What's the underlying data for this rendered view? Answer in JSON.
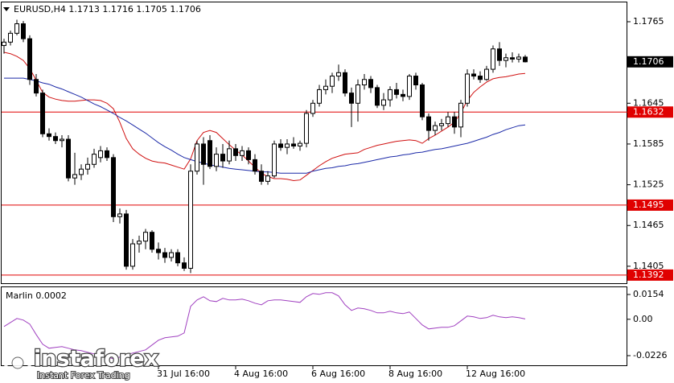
{
  "chart_data": {
    "type": "candlestick",
    "title": "EURUSD,H4  1.1713 1.1716 1.1705 1.1706",
    "categories": [
      null,
      null,
      null,
      null,
      null,
      null,
      null,
      null,
      null,
      null,
      null,
      null,
      null,
      null,
      null,
      null,
      null,
      null,
      null,
      null,
      null,
      null,
      null,
      null,
      "31 Jul 16:00",
      null,
      null,
      null,
      null,
      null,
      null,
      null,
      null,
      null,
      null,
      null,
      "4 Aug 16:00",
      null,
      null,
      null,
      null,
      null,
      null,
      null,
      null,
      null,
      null,
      null,
      "6 Aug 16:00",
      null,
      null,
      null,
      null,
      null,
      null,
      null,
      null,
      null,
      null,
      null,
      "8 Aug 16:00",
      null,
      null,
      null,
      null,
      null,
      null,
      null,
      null,
      null,
      null,
      null,
      "12 Aug 16:00",
      null,
      null,
      null,
      null,
      null,
      null,
      null,
      null,
      null
    ],
    "open": [
      1.173,
      1.1735,
      1.1748,
      1.1762,
      1.174,
      1.168,
      1.166,
      1.16,
      1.1596,
      1.159,
      1.1592,
      1.1535,
      1.154,
      1.1548,
      1.1555,
      1.1565,
      1.1575,
      1.1565,
      1.1478,
      1.1482,
      1.1405,
      1.1438,
      1.1442,
      1.1455,
      1.143,
      1.1425,
      1.1418,
      1.1425,
      1.141,
      1.1402,
      1.1545,
      1.1585,
      1.159,
      1.1552,
      1.157,
      1.156,
      1.1578,
      1.1568,
      1.1575,
      1.1562,
      1.1545,
      1.153,
      1.1538,
      1.1585,
      1.158,
      1.1585,
      1.1582,
      1.1586,
      1.163,
      1.1645,
      1.1665,
      1.167,
      1.1685,
      1.169,
      1.166,
      1.1645,
      1.1672,
      1.168,
      1.1668,
      1.1642,
      1.165,
      1.1665,
      1.1658,
      1.1655,
      1.1685,
      1.1672,
      1.1625,
      1.1605,
      1.1612,
      1.1615,
      1.1625,
      1.161,
      1.1645,
      1.1688,
      1.1685,
      1.168,
      1.1695,
      1.1725,
      1.1708,
      1.1712,
      1.171,
      1.1713
    ],
    "high": [
      1.174,
      1.1752,
      1.1768,
      1.1766,
      1.1745,
      1.1688,
      1.1665,
      1.1608,
      1.1602,
      1.1598,
      1.1598,
      1.1572,
      1.1555,
      1.1565,
      1.1578,
      1.1582,
      1.158,
      1.157,
      1.149,
      1.1488,
      1.1445,
      1.145,
      1.146,
      1.1458,
      1.144,
      1.1432,
      1.143,
      1.143,
      1.1418,
      1.1555,
      1.159,
      1.1595,
      1.1598,
      1.158,
      1.1585,
      1.159,
      1.1585,
      1.1582,
      1.158,
      1.157,
      1.1555,
      1.1545,
      1.159,
      1.1592,
      1.1592,
      1.1595,
      1.159,
      1.1635,
      1.165,
      1.1672,
      1.168,
      1.169,
      1.1702,
      1.1695,
      1.1668,
      1.168,
      1.1688,
      1.1685,
      1.1672,
      1.166,
      1.167,
      1.1675,
      1.1665,
      1.1688,
      1.169,
      1.1675,
      1.163,
      1.1618,
      1.1622,
      1.1632,
      1.1632,
      1.165,
      1.1695,
      1.1695,
      1.1692,
      1.17,
      1.173,
      1.1735,
      1.1718,
      1.172,
      1.1718,
      1.1716
    ],
    "low": [
      1.1718,
      1.173,
      1.1745,
      1.1735,
      1.1672,
      1.1655,
      1.1595,
      1.159,
      1.1585,
      1.158,
      1.153,
      1.1525,
      1.1532,
      1.154,
      1.155,
      1.1558,
      1.156,
      1.147,
      1.1468,
      1.14,
      1.14,
      1.1425,
      1.143,
      1.1425,
      1.1415,
      1.141,
      1.1412,
      1.1405,
      1.1398,
      1.1395,
      1.154,
      1.1525,
      1.1548,
      1.1545,
      1.155,
      1.1555,
      1.156,
      1.156,
      1.1555,
      1.154,
      1.1525,
      1.1525,
      1.1535,
      1.1575,
      1.157,
      1.1578,
      1.1575,
      1.158,
      1.1625,
      1.164,
      1.1658,
      1.166,
      1.1678,
      1.1655,
      1.161,
      1.1618,
      1.1665,
      1.166,
      1.1638,
      1.1635,
      1.164,
      1.1652,
      1.1648,
      1.165,
      1.1665,
      1.162,
      1.159,
      1.1598,
      1.1605,
      1.161,
      1.16,
      1.1595,
      1.164,
      1.168,
      1.1675,
      1.1678,
      1.169,
      1.17,
      1.1698,
      1.1705,
      1.1705,
      1.1705
    ],
    "close": [
      1.1735,
      1.1748,
      1.1762,
      1.174,
      1.168,
      1.166,
      1.16,
      1.1596,
      1.159,
      1.1592,
      1.1535,
      1.154,
      1.1548,
      1.1555,
      1.157,
      1.1575,
      1.1565,
      1.1478,
      1.1482,
      1.1405,
      1.1438,
      1.1442,
      1.1455,
      1.143,
      1.1425,
      1.1418,
      1.1425,
      1.141,
      1.1402,
      1.1545,
      1.1585,
      1.1555,
      1.1552,
      1.157,
      1.156,
      1.1578,
      1.1568,
      1.1575,
      1.1562,
      1.1545,
      1.153,
      1.1538,
      1.1585,
      1.158,
      1.1585,
      1.1582,
      1.1586,
      1.163,
      1.1645,
      1.1665,
      1.167,
      1.1685,
      1.169,
      1.166,
      1.1645,
      1.1672,
      1.168,
      1.1668,
      1.1642,
      1.165,
      1.1665,
      1.1658,
      1.1655,
      1.1685,
      1.1672,
      1.1625,
      1.1605,
      1.1612,
      1.1615,
      1.1625,
      1.161,
      1.1645,
      1.1688,
      1.1685,
      1.168,
      1.1695,
      1.1725,
      1.1708,
      1.1712,
      1.171,
      1.1713,
      1.1706
    ],
    "lines": [
      {
        "color": "#d01010",
        "values": [
          1.172,
          1.1718,
          1.1714,
          1.1708,
          1.1696,
          1.1679,
          1.1661,
          1.1654,
          1.1651,
          1.1649,
          1.1648,
          1.1648,
          1.1649,
          1.165,
          1.165,
          1.1649,
          1.1645,
          1.1637,
          1.1617,
          1.1593,
          1.1578,
          1.157,
          1.1564,
          1.156,
          1.1558,
          1.1557,
          1.1554,
          1.1551,
          1.1548,
          1.1563,
          1.159,
          1.1602,
          1.1605,
          1.1602,
          1.1593,
          1.1584,
          1.1576,
          1.1569,
          1.156,
          1.1551,
          1.1542,
          1.1537,
          1.1534,
          1.1534,
          1.1533,
          1.1531,
          1.1532,
          1.1539,
          1.1546,
          1.1553,
          1.1559,
          1.1564,
          1.1567,
          1.157,
          1.1571,
          1.1572,
          1.1577,
          1.158,
          1.1583,
          1.1585,
          1.1587,
          1.1589,
          1.159,
          1.1591,
          1.159,
          1.1586,
          1.1593,
          1.1598,
          1.1604,
          1.161,
          1.1617,
          1.1631,
          1.1649,
          1.1661,
          1.1669,
          1.1676,
          1.1681,
          1.1683,
          1.1684,
          1.1686,
          1.1688,
          1.1689
        ]
      },
      {
        "color": "#1c2aa8",
        "values": [
          1.1682,
          1.1682,
          1.1682,
          1.1682,
          1.168,
          1.1678,
          1.1675,
          1.1673,
          1.1669,
          1.1666,
          1.1662,
          1.1658,
          1.1654,
          1.1649,
          1.1644,
          1.164,
          1.1635,
          1.163,
          1.1624,
          1.1619,
          1.1613,
          1.1607,
          1.1601,
          1.1594,
          1.1587,
          1.1581,
          1.1576,
          1.157,
          1.1565,
          1.1562,
          1.1559,
          1.1557,
          1.1554,
          1.1553,
          1.1551,
          1.1549,
          1.1548,
          1.1547,
          1.1546,
          1.1545,
          1.1544,
          1.1544,
          1.1543,
          1.1542,
          1.1542,
          1.1542,
          1.1542,
          1.1542,
          1.1545,
          1.1547,
          1.1549,
          1.155,
          1.1552,
          1.1553,
          1.1555,
          1.1556,
          1.1558,
          1.156,
          1.1562,
          1.1564,
          1.1566,
          1.1567,
          1.1569,
          1.157,
          1.1572,
          1.1573,
          1.1575,
          1.1577,
          1.1578,
          1.158,
          1.1582,
          1.1584,
          1.1586,
          1.1589,
          1.1592,
          1.1595,
          1.1599,
          1.1602,
          1.1606,
          1.1609,
          1.1612,
          1.1613
        ]
      }
    ],
    "ylim": [
      1.138,
      1.1797
    ],
    "yticks": [
      1.1765,
      1.1645,
      1.1585,
      1.1525,
      1.1465,
      1.1405
    ],
    "levels": [
      1.1632,
      1.1495,
      1.1392
    ],
    "level_color": "#e00000",
    "indicator": {
      "name": "Marlin",
      "color": "#a040c0",
      "values": [
        -0.0045,
        -0.002,
        0.0005,
        -0.0005,
        -0.003,
        -0.0095,
        -0.0155,
        -0.018,
        -0.0175,
        -0.017,
        -0.018,
        -0.019,
        -0.0195,
        -0.0205,
        -0.0215,
        -0.0225,
        -0.0235,
        -0.0245,
        -0.0235,
        -0.022,
        -0.021,
        -0.02,
        -0.019,
        -0.016,
        -0.013,
        -0.0115,
        -0.011,
        -0.0105,
        -0.0085,
        0.008,
        0.012,
        0.014,
        0.0115,
        0.011,
        0.013,
        0.012,
        0.012,
        0.0125,
        0.0115,
        0.01,
        0.009,
        0.0115,
        0.012,
        0.012,
        0.0115,
        0.011,
        0.0105,
        0.014,
        0.016,
        0.0155,
        0.0165,
        0.0165,
        0.0145,
        0.009,
        0.0055,
        0.007,
        0.0065,
        0.0055,
        0.004,
        0.004,
        0.005,
        0.004,
        0.0035,
        0.0045,
        0.0005,
        -0.0035,
        -0.006,
        -0.0055,
        -0.005,
        -0.005,
        -0.004,
        -0.001,
        0.002,
        0.0015,
        0.0005,
        0.001,
        0.0025,
        0.0015,
        0.001,
        0.0015,
        0.001,
        0.0002
      ],
      "ylim": [
        -0.0291,
        0.0204
      ],
      "yticks": [
        0.0154,
        {
          "value": 0,
          "label": "0.00"
        },
        -0.0226
      ]
    },
    "logo": {
      "name": "instaforex",
      "tagline": "Instant Forex Trading"
    }
  }
}
